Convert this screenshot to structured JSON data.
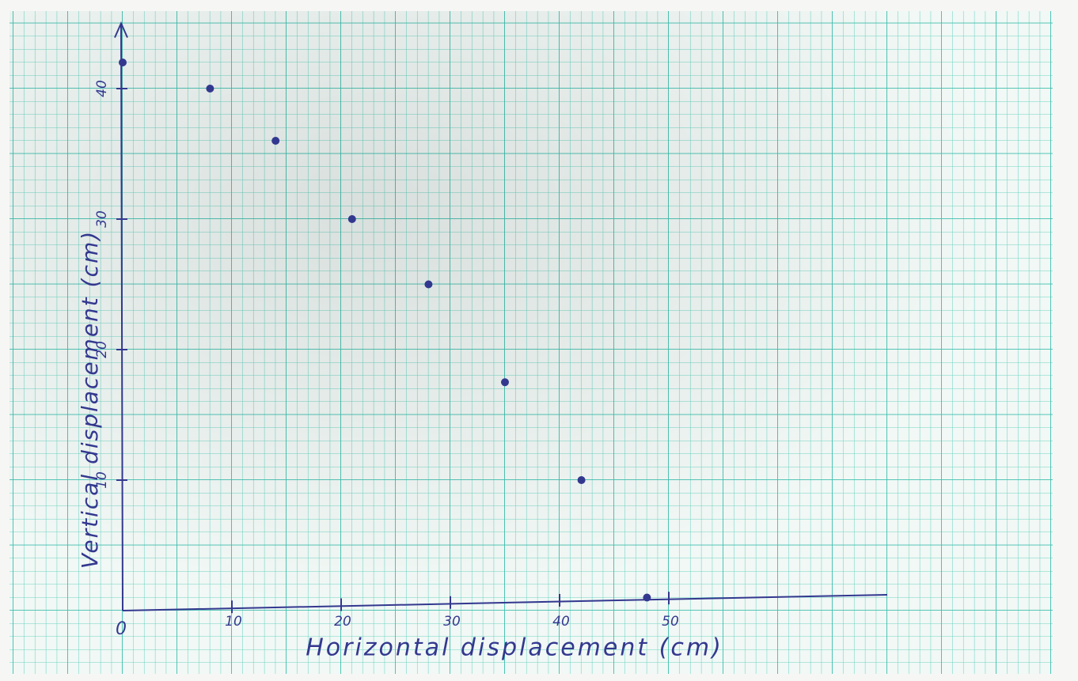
{
  "chart_data": {
    "type": "scatter",
    "x_label": "Horizontal displacement (cm)",
    "y_label": "Vertical displacement (cm)",
    "x": [
      0,
      8,
      14,
      21,
      28,
      35,
      42,
      48
    ],
    "values": [
      42,
      40,
      36,
      30,
      25,
      17.5,
      10,
      1
    ],
    "color": "#33388f",
    "xlim": [
      0,
      70
    ],
    "ylim": [
      0,
      45
    ],
    "xticks": [
      0,
      10,
      20,
      30,
      40,
      50
    ],
    "yticks": [
      10,
      20,
      30,
      40
    ]
  }
}
